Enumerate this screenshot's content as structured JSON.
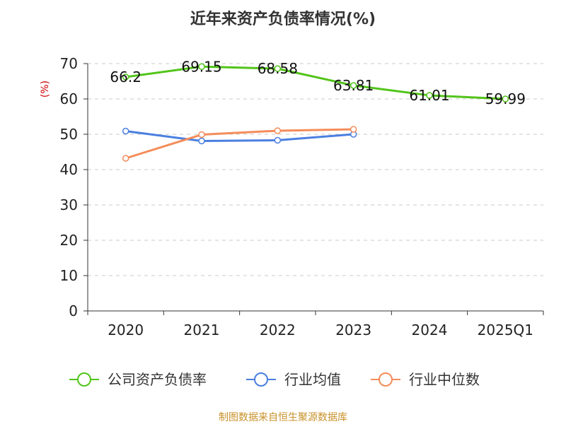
{
  "chart_data": {
    "type": "line",
    "title": "近年来资产负债率情况(%)",
    "ylabel": "(%)",
    "categories": [
      "2020",
      "2021",
      "2022",
      "2023",
      "2024",
      "2025Q1"
    ],
    "ylim": [
      0,
      70
    ],
    "yticks": [
      0,
      10,
      20,
      30,
      40,
      50,
      60,
      70
    ],
    "grid": "horizontal-dashed",
    "legend_position": "bottom",
    "series": [
      {
        "name": "公司资产负债率",
        "color": "#52c41a",
        "values": [
          66.2,
          69.15,
          68.58,
          63.81,
          61.01,
          59.99
        ],
        "labels": [
          "66.2",
          "69.15",
          "68.58",
          "63.81",
          "61.01",
          "59.99"
        ]
      },
      {
        "name": "行业均值",
        "color": "#4a7fe0",
        "values": [
          50.9,
          48.1,
          48.3,
          50.0,
          null,
          null
        ]
      },
      {
        "name": "行业中位数",
        "color": "#f58c5a",
        "values": [
          43.2,
          49.9,
          51.0,
          51.4,
          null,
          null
        ]
      }
    ],
    "source": "制图数据来自恒生聚源数据库",
    "source_color": "#c8912a",
    "unit_color": "#cc0000"
  }
}
